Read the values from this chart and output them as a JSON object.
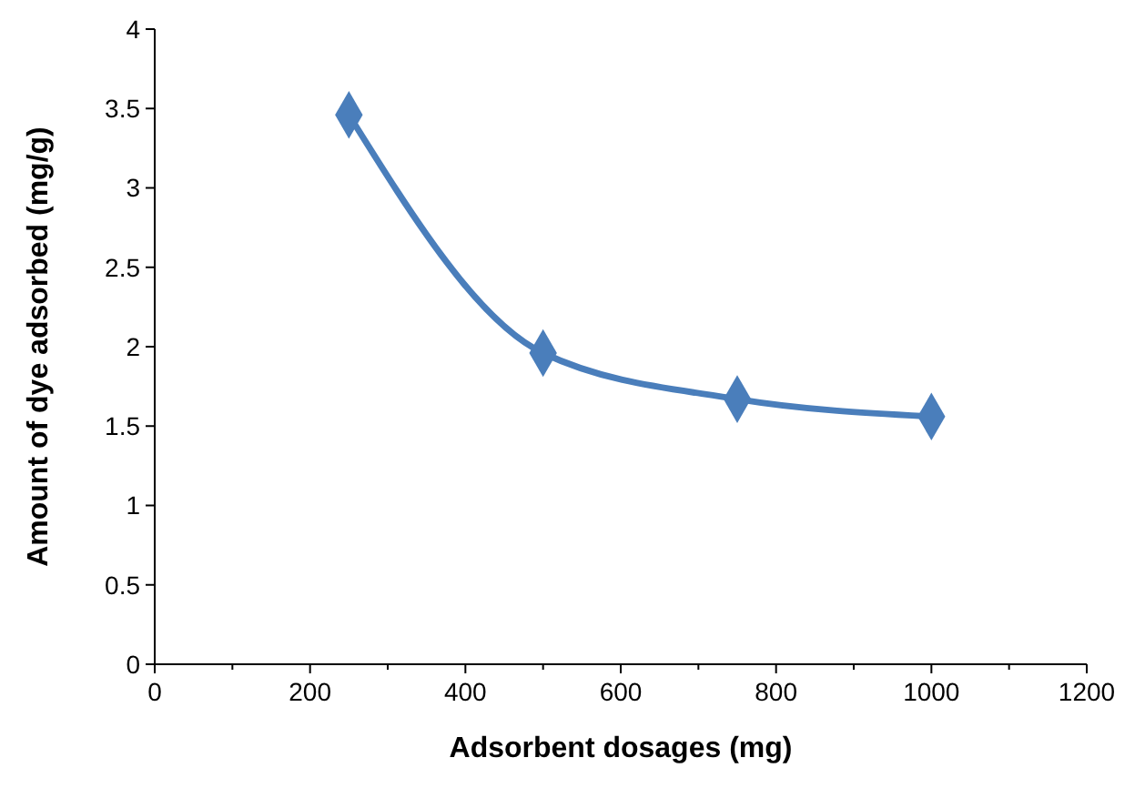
{
  "chart_data": {
    "type": "line",
    "xlabel": "Adsorbent dosages (mg)",
    "ylabel": "Amount of dye adsorbed (mg/g)",
    "x": [
      250,
      500,
      750,
      1000
    ],
    "series": [
      {
        "color": "#4a7ebb",
        "values": [
          3.46,
          1.96,
          1.67,
          1.56
        ]
      }
    ],
    "xlim": [
      0,
      1200
    ],
    "xticks": [
      0,
      200,
      400,
      600,
      800,
      1000,
      1200
    ],
    "ylim": [
      0,
      4
    ],
    "yticks": [
      0,
      0.5,
      1,
      1.5,
      2,
      2.5,
      3,
      3.5,
      4
    ],
    "grid": false,
    "marker": "diamond",
    "line_style": "solid"
  }
}
